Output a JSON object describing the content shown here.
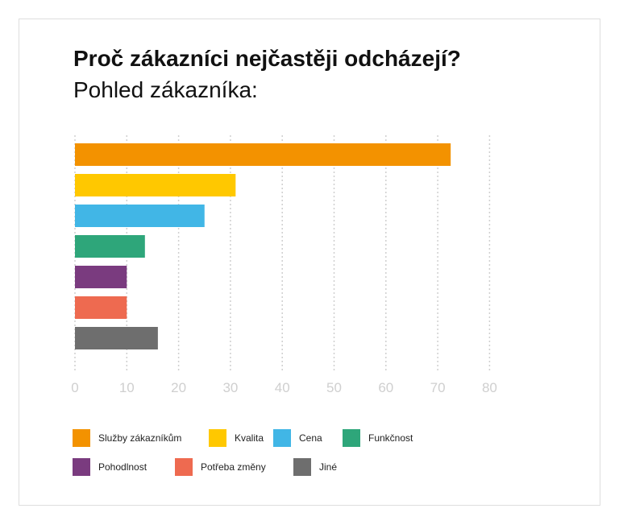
{
  "chart_data": {
    "type": "bar",
    "orientation": "horizontal",
    "title": "Proč zákazníci nejčastěji odcházejí?",
    "subtitle": "Pohled zákazníka:",
    "xlim": [
      0,
      80
    ],
    "x_ticks": [
      0,
      10,
      20,
      30,
      40,
      50,
      60,
      70,
      80
    ],
    "grid": true,
    "legend_position": "bottom",
    "categories": [
      "Služby zákazníkům",
      "Kvalita",
      "Cena",
      "Funkčnost",
      "Pohodlnost",
      "Potřeba změny",
      "Jiné"
    ],
    "values": [
      72.5,
      31,
      25,
      13.5,
      10,
      10,
      16
    ],
    "colors": [
      "#f39200",
      "#ffc800",
      "#41b6e6",
      "#2ea67a",
      "#7a3b7f",
      "#ee6a50",
      "#6e6e6e"
    ]
  }
}
